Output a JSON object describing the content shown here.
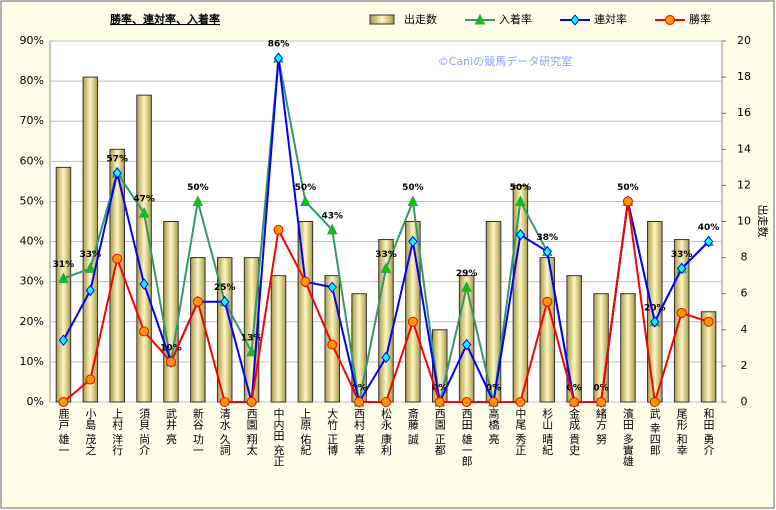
{
  "chart_data": {
    "type": "bar",
    "title": "勝率、連対率、入着率",
    "annotation": "©Caniの競馬データ研究室",
    "y2label": "出走数",
    "categories": [
      "鹿戸 雄一",
      "小島 茂之",
      "上村 洋行",
      "須貝 尚介",
      "武井 亮",
      "新谷 功一",
      "清水 久詞",
      "西園 翔太",
      "中内田 充正",
      "上原 佑紀",
      "大竹 正博",
      "西村 真幸",
      "松永 康利",
      "斎藤 誠",
      "西園 正都",
      "西田 雄一郎",
      "高橋 亮",
      "中尾 秀正",
      "杉山 晴紀",
      "金成 貴史",
      "緒方 努",
      "濱田 多實雄",
      "武 幸四郎",
      "尾形 和幸",
      "和田 勇介"
    ],
    "series": [
      {
        "name": "出走数",
        "type": "bar",
        "axis": "y2",
        "color": "#ddd28a",
        "values": [
          13,
          18,
          14,
          17,
          10,
          8,
          8,
          8,
          7,
          10,
          7,
          6,
          9,
          10,
          4,
          7,
          10,
          12,
          8,
          7,
          6,
          6,
          10,
          9,
          5
        ]
      },
      {
        "name": "入着率",
        "type": "line",
        "marker": "triangle",
        "color": "#339966",
        "marker_fill": "#00cc00",
        "values": [
          30.8,
          33.3,
          57.1,
          47.1,
          10,
          50,
          25,
          12.5,
          85.7,
          50,
          42.9,
          0,
          33.3,
          50,
          0,
          28.6,
          0,
          50,
          37.5,
          0,
          0,
          50,
          20,
          33.3,
          40
        ],
        "value_labels": [
          "31%",
          "33%",
          "57%",
          "47%",
          "10%",
          "50%",
          "25%",
          "13%",
          "86%",
          "50%",
          "43%",
          "0%",
          "33%",
          "50%",
          "0%",
          "29%",
          "0%",
          "50%",
          "38%",
          "0%",
          "0%",
          "50%",
          "20%",
          "33%",
          "40%"
        ]
      },
      {
        "name": "連対率",
        "type": "line",
        "marker": "diamond",
        "color": "#0000ff",
        "marker_fill": "#00ffff",
        "values": [
          15.4,
          27.8,
          57.1,
          29.4,
          10,
          25,
          25,
          0,
          85.7,
          30,
          28.6,
          0,
          11.1,
          40,
          0,
          14.3,
          0,
          41.7,
          37.5,
          0,
          0,
          50,
          20,
          33.3,
          40
        ]
      },
      {
        "name": "勝率",
        "type": "line",
        "marker": "circle",
        "color": "#ff0000",
        "marker_fill": "#ff9900",
        "values": [
          0,
          5.6,
          35.7,
          17.6,
          10,
          25,
          0,
          0,
          42.9,
          30,
          14.3,
          0,
          0,
          20,
          0,
          0,
          0,
          0,
          25,
          0,
          0,
          50,
          0,
          22.2,
          20
        ]
      }
    ],
    "ylim": [
      0,
      90
    ],
    "yticks": [
      {
        "value": 0,
        "label": "0%"
      },
      {
        "value": 10,
        "label": "10%"
      },
      {
        "value": 20,
        "label": "20%"
      },
      {
        "value": 30,
        "label": "30%"
      },
      {
        "value": 40,
        "label": "40%"
      },
      {
        "value": 50,
        "label": "50%"
      },
      {
        "value": 60,
        "label": "60%"
      },
      {
        "value": 70,
        "label": "70%"
      },
      {
        "value": 80,
        "label": "80%"
      },
      {
        "value": 90,
        "label": "90%"
      }
    ],
    "y2lim": [
      0,
      20
    ],
    "y2ticks": [
      0,
      2,
      4,
      6,
      8,
      10,
      12,
      14,
      16,
      18,
      20
    ],
    "grid": true
  }
}
